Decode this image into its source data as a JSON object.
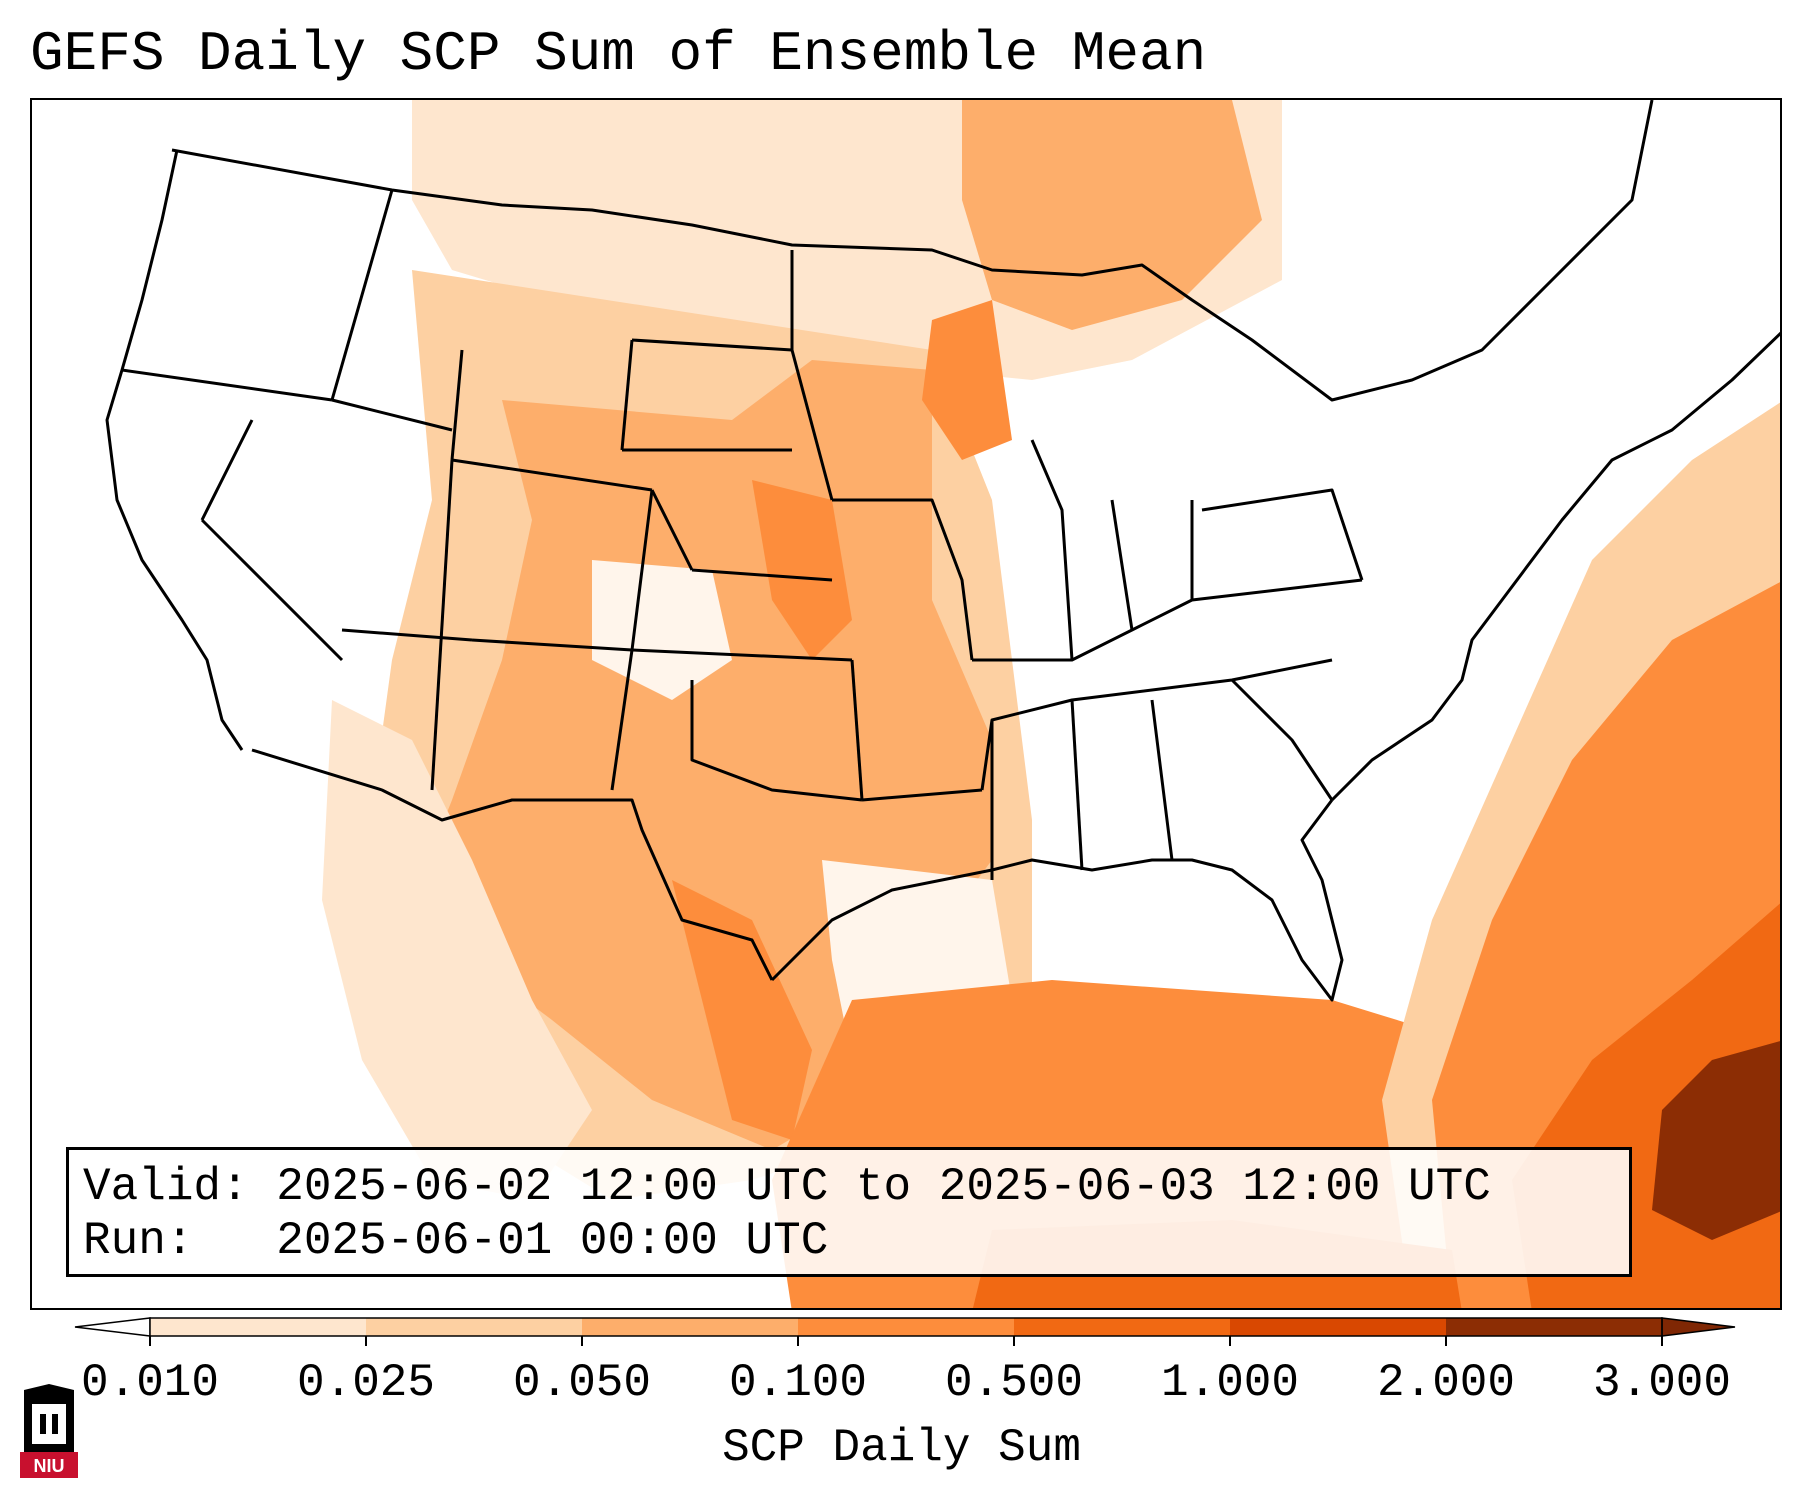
{
  "title": "GEFS Daily SCP Sum of Ensemble Mean",
  "info": {
    "valid_line": "Valid: 2025-06-02 12:00 UTC to 2025-06-03 12:00 UTC",
    "run_line": "Run:   2025-06-01 00:00 UTC"
  },
  "colorbar": {
    "label": "SCP Daily Sum",
    "ticks": [
      "0.010",
      "0.025",
      "0.050",
      "0.100",
      "0.500",
      "1.000",
      "2.000",
      "3.000"
    ],
    "colors": [
      "#fff5eb",
      "#fee6ce",
      "#fdd0a2",
      "#fdae6b",
      "#fd8d3c",
      "#f16913",
      "#d94801",
      "#8c2d04"
    ],
    "under_color": "#ffffff",
    "over_color": "#7f2704"
  },
  "logo": {
    "text": "NIU",
    "colors": [
      "#c8102e",
      "#000000"
    ]
  }
}
